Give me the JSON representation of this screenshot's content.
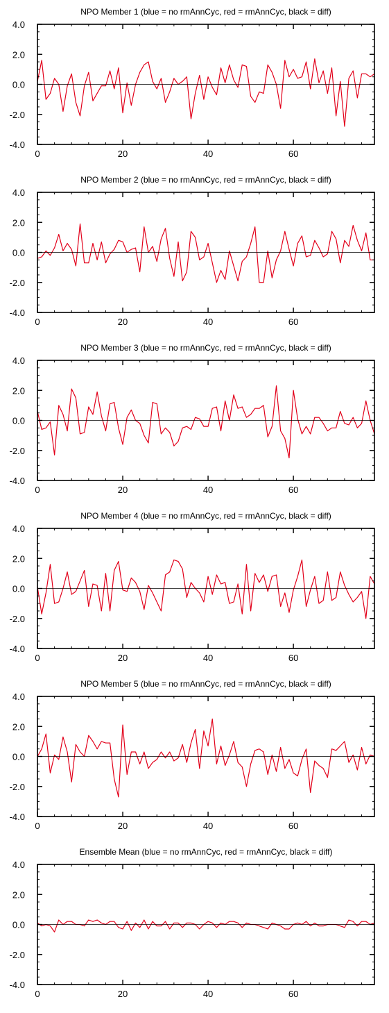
{
  "chart_data": [
    {
      "type": "line",
      "title": "NPO Member 1 (blue = no rmAnnCyc, red = rmAnnCyc, black = diff)",
      "xlim": [
        0,
        79
      ],
      "ylim": [
        -4,
        4
      ],
      "x_ticks": [
        0,
        20,
        40,
        60
      ],
      "x_tick_labels": [
        "0",
        "20",
        "40",
        "60"
      ],
      "y_ticks": [
        4,
        2,
        0,
        -2,
        -4
      ],
      "y_tick_labels": [
        "4.0",
        "2.0",
        "0.0",
        "-2.0",
        "-4.0"
      ],
      "series": [
        {
          "color": "#e2001a",
          "values": [
            0.2,
            1.6,
            -1.0,
            -0.6,
            0.4,
            0.0,
            -1.8,
            -0.1,
            0.7,
            -1.2,
            -2.1,
            -0.1,
            0.8,
            -1.1,
            -0.6,
            -0.1,
            -0.1,
            0.9,
            -0.3,
            1.1,
            -1.9,
            0.1,
            -1.4,
            0.0,
            0.8,
            1.3,
            1.5,
            0.2,
            -0.3,
            0.4,
            -1.2,
            -0.5,
            0.4,
            0.0,
            0.2,
            0.5,
            -2.3,
            -0.6,
            0.6,
            -1.0,
            0.5,
            -0.2,
            -0.7,
            1.1,
            0.1,
            1.3,
            0.3,
            -0.2,
            1.3,
            1.2,
            -0.8,
            -1.2,
            -0.5,
            -0.6,
            1.3,
            0.8,
            0.0,
            -1.6,
            1.6,
            0.5,
            1.0,
            0.4,
            0.5,
            1.5,
            -0.3,
            1.7,
            0.1,
            0.9,
            -0.6,
            1.1,
            -2.1,
            0.2,
            -2.8,
            0.4,
            0.9,
            -0.9,
            0.7,
            0.7,
            0.5,
            0.7
          ]
        },
        {
          "color": "#000000",
          "values": [
            0
          ]
        }
      ]
    },
    {
      "type": "line",
      "title": "NPO Member 2 (blue = no rmAnnCyc, red = rmAnnCyc, black = diff)",
      "xlim": [
        0,
        79
      ],
      "ylim": [
        -4,
        4
      ],
      "x_ticks": [
        0,
        20,
        40,
        60
      ],
      "x_tick_labels": [
        "0",
        "20",
        "40",
        "60"
      ],
      "y_ticks": [
        4,
        2,
        0,
        -2,
        -4
      ],
      "y_tick_labels": [
        "4.0",
        "2.0",
        "0.0",
        "-2.0",
        "-4.0"
      ],
      "series": [
        {
          "color": "#e2001a",
          "values": [
            -0.4,
            -0.3,
            0.1,
            -0.2,
            0.3,
            1.2,
            0.1,
            0.6,
            0.2,
            -0.9,
            1.9,
            -0.7,
            -0.7,
            0.6,
            -0.5,
            0.7,
            -0.7,
            -0.1,
            0.2,
            0.8,
            0.7,
            0.0,
            0.2,
            0.3,
            -1.3,
            1.7,
            0.0,
            0.4,
            -0.6,
            0.9,
            1.6,
            -0.4,
            -1.6,
            0.7,
            -1.9,
            -1.3,
            1.4,
            1.0,
            -0.5,
            -0.3,
            0.6,
            -0.7,
            -2.0,
            -1.2,
            -1.8,
            0.1,
            -0.9,
            -1.9,
            -0.6,
            -0.3,
            0.6,
            1.7,
            -2.0,
            -2.0,
            0.1,
            -1.7,
            -0.5,
            0.1,
            1.4,
            0.2,
            -0.9,
            0.6,
            1.1,
            -0.3,
            -0.2,
            0.8,
            0.3,
            -0.3,
            -0.1,
            1.4,
            0.9,
            -0.7,
            0.8,
            0.4,
            1.8,
            0.8,
            0.1,
            1.3,
            -0.5,
            -0.5
          ]
        },
        {
          "color": "#000000",
          "values": [
            0
          ]
        }
      ]
    },
    {
      "type": "line",
      "title": "NPO Member 3 (blue = no rmAnnCyc, red = rmAnnCyc, black = diff)",
      "xlim": [
        0,
        79
      ],
      "ylim": [
        -4,
        4
      ],
      "x_ticks": [
        0,
        20,
        40,
        60
      ],
      "x_tick_labels": [
        "0",
        "20",
        "40",
        "60"
      ],
      "y_ticks": [
        4,
        2,
        0,
        -2,
        -4
      ],
      "y_tick_labels": [
        "4.0",
        "2.0",
        "0.0",
        "-2.0",
        "-4.0"
      ],
      "series": [
        {
          "color": "#e2001a",
          "values": [
            0.6,
            -0.6,
            -0.5,
            -0.1,
            -2.3,
            1.0,
            0.4,
            -0.7,
            2.1,
            1.5,
            -0.9,
            -0.8,
            0.9,
            0.4,
            1.9,
            0.3,
            -0.7,
            1.1,
            1.2,
            -0.5,
            -1.6,
            0.2,
            0.7,
            0.0,
            -0.2,
            -1.0,
            -1.5,
            1.2,
            1.1,
            -0.9,
            -0.5,
            -0.8,
            -1.7,
            -1.4,
            -0.5,
            -0.4,
            -0.6,
            0.2,
            0.1,
            -0.4,
            -0.4,
            0.8,
            0.9,
            -0.7,
            1.3,
            0.0,
            1.7,
            0.8,
            0.9,
            0.2,
            0.4,
            0.8,
            0.8,
            1.0,
            -1.1,
            -0.4,
            2.3,
            -0.7,
            -1.2,
            -2.5,
            2.0,
            0.1,
            -0.9,
            -0.4,
            -0.9,
            0.2,
            0.2,
            -0.2,
            -0.7,
            -0.5,
            -0.5,
            0.6,
            -0.2,
            -0.3,
            0.2,
            -0.5,
            -0.2,
            1.3,
            0.0,
            -0.9
          ]
        },
        {
          "color": "#000000",
          "values": [
            0
          ]
        }
      ]
    },
    {
      "type": "line",
      "title": "NPO Member 4 (blue = no rmAnnCyc, red = rmAnnCyc, black = diff)",
      "xlim": [
        0,
        79
      ],
      "ylim": [
        -4,
        4
      ],
      "x_ticks": [
        0,
        20,
        40,
        60
      ],
      "x_tick_labels": [
        "0",
        "20",
        "40",
        "60"
      ],
      "y_ticks": [
        4,
        2,
        0,
        -2,
        -4
      ],
      "y_tick_labels": [
        "4.0",
        "2.0",
        "0.0",
        "-2.0",
        "-4.0"
      ],
      "series": [
        {
          "color": "#e2001a",
          "values": [
            0.1,
            -1.7,
            -0.3,
            1.6,
            -1.0,
            -0.9,
            0.0,
            1.1,
            -0.4,
            -0.2,
            0.5,
            1.2,
            -1.2,
            0.3,
            0.2,
            -1.5,
            1.0,
            -1.5,
            1.2,
            1.8,
            -0.1,
            -0.2,
            0.7,
            0.4,
            -0.2,
            -1.4,
            0.2,
            -0.3,
            -0.9,
            -1.5,
            0.9,
            1.1,
            1.9,
            1.8,
            1.3,
            -0.6,
            0.4,
            0.0,
            -0.3,
            -0.9,
            0.8,
            -0.4,
            0.9,
            0.3,
            0.4,
            -1.0,
            -0.9,
            0.3,
            -1.7,
            1.6,
            -1.5,
            1.0,
            0.4,
            0.9,
            -0.2,
            0.8,
            0.9,
            -1.2,
            -0.3,
            -1.6,
            -0.1,
            0.8,
            1.9,
            -1.2,
            -0.1,
            0.8,
            -1.0,
            -0.8,
            1.1,
            -0.8,
            -0.6,
            1.1,
            0.2,
            -0.4,
            -0.9,
            -0.6,
            -0.2,
            -2.0,
            0.8,
            0.3
          ]
        },
        {
          "color": "#000000",
          "values": [
            0
          ]
        }
      ]
    },
    {
      "type": "line",
      "title": "NPO Member 5 (blue = no rmAnnCyc, red = rmAnnCyc, black = diff)",
      "xlim": [
        0,
        79
      ],
      "ylim": [
        -4,
        4
      ],
      "x_ticks": [
        0,
        20,
        40,
        60
      ],
      "x_tick_labels": [
        "0",
        "20",
        "40",
        "60"
      ],
      "y_ticks": [
        4,
        2,
        0,
        -2,
        -4
      ],
      "y_tick_labels": [
        "4.0",
        "2.0",
        "0.0",
        "-2.0",
        "-4.0"
      ],
      "series": [
        {
          "color": "#e2001a",
          "values": [
            0.0,
            0.5,
            1.5,
            -1.1,
            0.1,
            -0.2,
            1.3,
            0.3,
            -1.7,
            0.8,
            0.3,
            0.0,
            1.4,
            1.0,
            0.5,
            1.0,
            0.9,
            0.9,
            -1.5,
            -2.7,
            2.1,
            -1.2,
            0.3,
            0.3,
            -0.5,
            0.3,
            -0.8,
            -0.4,
            -0.2,
            0.3,
            -0.1,
            0.3,
            -0.3,
            -0.1,
            0.8,
            -0.4,
            0.9,
            1.8,
            -0.8,
            1.7,
            0.7,
            2.5,
            -0.5,
            0.7,
            -0.6,
            0.1,
            1.0,
            -0.4,
            -0.7,
            -2.0,
            -0.5,
            0.4,
            0.5,
            0.3,
            -1.2,
            0.1,
            -1.0,
            0.6,
            -0.8,
            -0.2,
            -1.1,
            -1.3,
            -0.2,
            0.5,
            -2.4,
            -0.3,
            -0.6,
            -0.8,
            -1.4,
            0.5,
            0.4,
            0.7,
            1.0,
            -0.4,
            0.1,
            -0.9,
            0.6,
            -0.5,
            0.1,
            0.0
          ]
        },
        {
          "color": "#000000",
          "values": [
            0
          ]
        }
      ]
    },
    {
      "type": "line",
      "title": "Ensemble Mean (blue = no rmAnnCyc, red = rmAnnCyc, black = diff)",
      "xlim": [
        0,
        79
      ],
      "ylim": [
        -4,
        4
      ],
      "x_ticks": [
        0,
        20,
        40,
        60
      ],
      "x_tick_labels": [
        "0",
        "20",
        "40",
        "60"
      ],
      "y_ticks": [
        4,
        2,
        0,
        -2,
        -4
      ],
      "y_tick_labels": [
        "4.0",
        "2.0",
        "0.0",
        "-2.0",
        "-4.0"
      ],
      "series": [
        {
          "color": "#e2001a",
          "values": [
            0.1,
            -0.1,
            0.0,
            -0.1,
            -0.5,
            0.3,
            0.0,
            0.2,
            0.2,
            0.0,
            0.0,
            -0.1,
            0.3,
            0.2,
            0.3,
            0.1,
            0.0,
            0.2,
            0.2,
            -0.2,
            -0.3,
            0.2,
            -0.4,
            0.1,
            -0.2,
            0.3,
            -0.3,
            0.2,
            -0.1,
            -0.1,
            0.2,
            -0.3,
            0.1,
            0.1,
            -0.2,
            0.1,
            0.1,
            0.0,
            -0.3,
            0.0,
            0.2,
            0.1,
            -0.2,
            0.1,
            0.0,
            0.2,
            0.2,
            0.1,
            -0.2,
            0.1,
            0.0,
            0.0,
            -0.1,
            -0.2,
            -0.3,
            0.1,
            0.0,
            -0.1,
            -0.3,
            -0.3,
            0.0,
            0.1,
            0.0,
            0.2,
            -0.1,
            0.1,
            -0.1,
            -0.1,
            0.0,
            0.0,
            0.0,
            -0.1,
            -0.2,
            0.3,
            0.2,
            -0.1,
            0.2,
            0.2,
            0.0,
            0.1
          ]
        },
        {
          "color": "#000000",
          "values": [
            0
          ]
        }
      ]
    }
  ]
}
